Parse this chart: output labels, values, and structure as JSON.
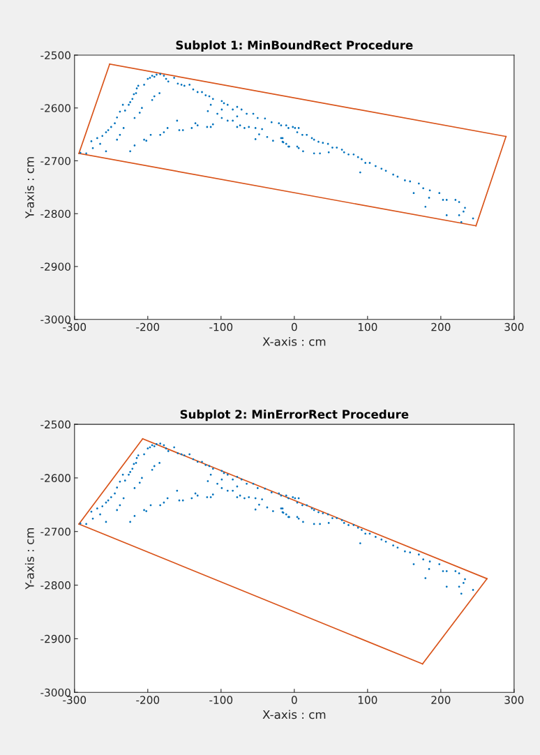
{
  "chart_data": [
    {
      "type": "scatter",
      "title": "Subplot 1: MinBoundRect Procedure",
      "xlabel": "X-axis : cm",
      "ylabel": "Y-axis : cm",
      "xlim": [
        -300,
        300
      ],
      "ylim": [
        -3000,
        -2500
      ],
      "xticks": [
        -300,
        -200,
        -100,
        0,
        100,
        200,
        300
      ],
      "yticks": [
        -3000,
        -2900,
        -2800,
        -2700,
        -2600,
        -2500
      ],
      "grid": false,
      "legend": false,
      "series": [
        {
          "color": "#0072bd",
          "marker": "circle",
          "x": [
            -292,
            -284,
            -275,
            -277,
            -269,
            -265,
            -262,
            -257,
            -254,
            -250,
            -245,
            -242,
            -238,
            -234,
            -231,
            -226,
            -224,
            -221,
            -219,
            -216,
            -215,
            -213,
            -205,
            -200,
            -197,
            -194,
            -191,
            -188,
            -183,
            -178,
            -175,
            -172,
            -164,
            -159,
            -154,
            -150,
            -143,
            -138,
            -132,
            -126,
            -121,
            -116,
            -111,
            -99,
            -96,
            -91,
            -84,
            -78,
            -72,
            -65,
            -56,
            -50,
            -40,
            -31,
            -21,
            -11,
            -2,
            6,
            -257,
            -242,
            -238,
            -233,
            -224,
            -218,
            -218,
            -211,
            -208,
            -205,
            -202,
            -196,
            -194,
            -191,
            -184,
            -183,
            -178,
            -173,
            -160,
            -157,
            -152,
            -140,
            -135,
            -132,
            -119,
            -114,
            -111,
            -118,
            -114,
            -105,
            -99,
            -91,
            -84,
            -78,
            -74,
            -68,
            -62,
            -53,
            -53,
            -48,
            -44,
            -37,
            -29,
            -16,
            -15,
            -11,
            -7,
            6,
            -99,
            -78,
            -18,
            -8,
            1,
            4,
            11,
            17,
            24,
            27,
            33,
            39,
            46,
            52,
            58,
            65,
            68,
            74,
            81,
            87,
            92,
            97,
            103,
            111,
            119,
            125,
            135,
            141,
            151,
            158,
            170,
            176,
            185,
            198,
            208,
            220,
            225,
            233,
            231,
            244,
            -16,
            -8,
            4,
            12,
            27,
            35,
            47,
            90,
            163,
            179,
            184,
            203,
            208,
            225,
            228,
            -18
          ],
          "values": [
            -2685,
            -2686,
            -2676,
            -2663,
            -2657,
            -2668,
            -2653,
            -2646,
            -2642,
            -2636,
            -2629,
            -2618,
            -2607,
            -2594,
            -2605,
            -2594,
            -2589,
            -2583,
            -2574,
            -2572,
            -2563,
            -2558,
            -2556,
            -2545,
            -2543,
            -2539,
            -2541,
            -2537,
            -2536,
            -2539,
            -2545,
            -2550,
            -2543,
            -2554,
            -2556,
            -2558,
            -2556,
            -2565,
            -2570,
            -2570,
            -2576,
            -2578,
            -2583,
            -2587,
            -2591,
            -2594,
            -2603,
            -2598,
            -2603,
            -2611,
            -2611,
            -2619,
            -2620,
            -2627,
            -2629,
            -2633,
            -2636,
            -2638,
            -2682,
            -2660,
            -2651,
            -2638,
            -2682,
            -2671,
            -2619,
            -2609,
            -2600,
            -2660,
            -2662,
            -2651,
            -2585,
            -2578,
            -2572,
            -2651,
            -2646,
            -2638,
            -2624,
            -2642,
            -2642,
            -2638,
            -2629,
            -2633,
            -2636,
            -2636,
            -2631,
            -2606,
            -2594,
            -2611,
            -2619,
            -2624,
            -2624,
            -2636,
            -2633,
            -2638,
            -2636,
            -2638,
            -2659,
            -2650,
            -2640,
            -2655,
            -2662,
            -2657,
            -2665,
            -2668,
            -2673,
            -2676,
            -2603,
            -2616,
            -2633,
            -2638,
            -2638,
            -2646,
            -2651,
            -2651,
            -2657,
            -2660,
            -2664,
            -2666,
            -2668,
            -2675,
            -2675,
            -2679,
            -2684,
            -2688,
            -2688,
            -2693,
            -2697,
            -2704,
            -2704,
            -2710,
            -2715,
            -2719,
            -2726,
            -2730,
            -2737,
            -2739,
            -2743,
            -2752,
            -2756,
            -2761,
            -2774,
            -2774,
            -2778,
            -2789,
            -2796,
            -2809,
            -2664,
            -2673,
            -2673,
            -2682,
            -2686,
            -2686,
            -2684,
            -2722,
            -2761,
            -2787,
            -2770,
            -2774,
            -2803,
            -2803,
            -2816,
            -2657
          ]
        },
        {
          "type": "line",
          "color": "#d95319",
          "marker": "none",
          "line_style": "solid",
          "x": [
            -294,
            -252
          ],
          "values": [
            -2686,
            -2517
          ]
        },
        {
          "type": "line",
          "color": "#d95319",
          "marker": "none",
          "line_style": "solid",
          "x": [
            -252,
            289
          ],
          "values": [
            -2517,
            -2654
          ]
        },
        {
          "type": "line",
          "color": "#d95319",
          "marker": "none",
          "line_style": "solid",
          "x": [
            248,
            289
          ],
          "values": [
            -2823,
            -2654
          ]
        },
        {
          "type": "line",
          "color": "#d95319",
          "marker": "none",
          "line_style": "solid",
          "x": [
            -294,
            248
          ],
          "values": [
            -2686,
            -2823
          ]
        }
      ]
    },
    {
      "type": "scatter",
      "title": "Subplot 2: MinErrorRect Procedure",
      "xlabel": "X-axis : cm",
      "ylabel": "Y-axis : cm",
      "xlim": [
        -300,
        300
      ],
      "ylim": [
        -3000,
        -2500
      ],
      "xticks": [
        -300,
        -200,
        -100,
        0,
        100,
        200,
        300
      ],
      "yticks": [
        -3000,
        -2900,
        -2800,
        -2700,
        -2600,
        -2500
      ],
      "grid": false,
      "legend": false,
      "series": [
        {
          "color": "#0072bd",
          "marker": "circle",
          "x": [
            -292,
            -284,
            -275,
            -277,
            -269,
            -265,
            -262,
            -257,
            -254,
            -250,
            -245,
            -242,
            -238,
            -234,
            -231,
            -226,
            -224,
            -221,
            -219,
            -216,
            -215,
            -213,
            -205,
            -200,
            -197,
            -194,
            -191,
            -188,
            -183,
            -178,
            -175,
            -172,
            -164,
            -159,
            -154,
            -150,
            -143,
            -138,
            -132,
            -126,
            -121,
            -116,
            -111,
            -99,
            -96,
            -91,
            -84,
            -78,
            -72,
            -65,
            -56,
            -50,
            -40,
            -31,
            -21,
            -11,
            -2,
            6,
            -257,
            -242,
            -238,
            -233,
            -224,
            -218,
            -218,
            -211,
            -208,
            -205,
            -202,
            -196,
            -194,
            -191,
            -184,
            -183,
            -178,
            -173,
            -160,
            -157,
            -152,
            -140,
            -135,
            -132,
            -119,
            -114,
            -111,
            -118,
            -114,
            -105,
            -99,
            -91,
            -84,
            -78,
            -74,
            -68,
            -62,
            -53,
            -53,
            -48,
            -44,
            -37,
            -29,
            -16,
            -15,
            -11,
            -7,
            6,
            -99,
            -78,
            -18,
            -8,
            1,
            4,
            11,
            17,
            24,
            27,
            33,
            39,
            46,
            52,
            58,
            65,
            68,
            74,
            81,
            87,
            92,
            97,
            103,
            111,
            119,
            125,
            135,
            141,
            151,
            158,
            170,
            176,
            185,
            198,
            208,
            220,
            225,
            233,
            231,
            244,
            -16,
            -8,
            4,
            12,
            27,
            35,
            47,
            90,
            163,
            179,
            184,
            203,
            208,
            225,
            228,
            -18
          ],
          "values": [
            -2685,
            -2686,
            -2676,
            -2663,
            -2657,
            -2668,
            -2653,
            -2646,
            -2642,
            -2636,
            -2629,
            -2618,
            -2607,
            -2594,
            -2605,
            -2594,
            -2589,
            -2583,
            -2574,
            -2572,
            -2563,
            -2558,
            -2556,
            -2545,
            -2543,
            -2539,
            -2541,
            -2537,
            -2536,
            -2539,
            -2545,
            -2550,
            -2543,
            -2554,
            -2556,
            -2558,
            -2556,
            -2565,
            -2570,
            -2570,
            -2576,
            -2578,
            -2583,
            -2587,
            -2591,
            -2594,
            -2603,
            -2598,
            -2603,
            -2611,
            -2611,
            -2619,
            -2620,
            -2627,
            -2629,
            -2633,
            -2636,
            -2638,
            -2682,
            -2660,
            -2651,
            -2638,
            -2682,
            -2671,
            -2619,
            -2609,
            -2600,
            -2660,
            -2662,
            -2651,
            -2585,
            -2578,
            -2572,
            -2651,
            -2646,
            -2638,
            -2624,
            -2642,
            -2642,
            -2638,
            -2629,
            -2633,
            -2636,
            -2636,
            -2631,
            -2606,
            -2594,
            -2611,
            -2619,
            -2624,
            -2624,
            -2636,
            -2633,
            -2638,
            -2636,
            -2638,
            -2659,
            -2650,
            -2640,
            -2655,
            -2662,
            -2657,
            -2665,
            -2668,
            -2673,
            -2676,
            -2603,
            -2616,
            -2633,
            -2638,
            -2638,
            -2646,
            -2651,
            -2651,
            -2657,
            -2660,
            -2664,
            -2666,
            -2668,
            -2675,
            -2675,
            -2679,
            -2684,
            -2688,
            -2688,
            -2693,
            -2697,
            -2704,
            -2704,
            -2710,
            -2715,
            -2719,
            -2726,
            -2730,
            -2737,
            -2739,
            -2743,
            -2752,
            -2756,
            -2761,
            -2774,
            -2774,
            -2778,
            -2789,
            -2796,
            -2809,
            -2664,
            -2673,
            -2673,
            -2682,
            -2686,
            -2686,
            -2684,
            -2722,
            -2761,
            -2787,
            -2770,
            -2774,
            -2803,
            -2803,
            -2816,
            -2657
          ]
        },
        {
          "type": "line",
          "color": "#d95319",
          "marker": "none",
          "line_style": "solid",
          "x": [
            -294,
            -207
          ],
          "values": [
            -2686,
            -2527
          ]
        },
        {
          "type": "line",
          "color": "#d95319",
          "marker": "none",
          "line_style": "solid",
          "x": [
            -207,
            263
          ],
          "values": [
            -2527,
            -2788
          ]
        },
        {
          "type": "line",
          "color": "#d95319",
          "marker": "none",
          "line_style": "solid",
          "x": [
            175,
            263
          ],
          "values": [
            -2947,
            -2788
          ]
        },
        {
          "type": "line",
          "color": "#d95319",
          "marker": "none",
          "line_style": "solid",
          "x": [
            -294,
            175
          ],
          "values": [
            -2686,
            -2947
          ]
        }
      ]
    }
  ]
}
